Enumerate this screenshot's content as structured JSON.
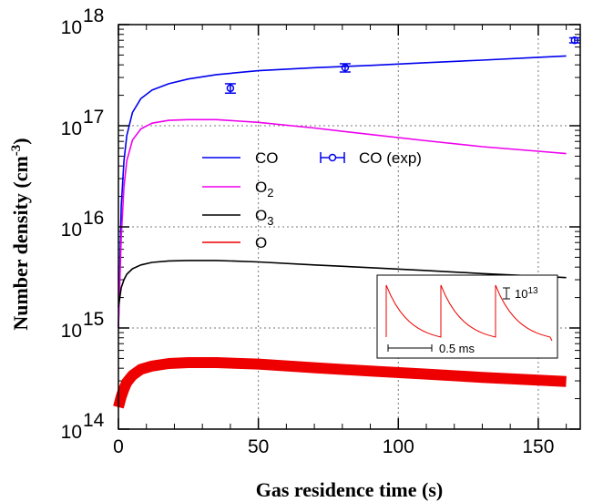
{
  "chart_data": {
    "type": "line",
    "xlabel": "Gas residence time (s)",
    "ylabel_text": "Number density (cm",
    "ylabel_sup": "-3",
    "ylabel_close": ")",
    "xlim": [
      0,
      165
    ],
    "ylim": [
      100000000000000.0,
      1e+18
    ],
    "yscale": "log",
    "grid": true,
    "x_ticks": [
      "0",
      "50",
      "100",
      "150"
    ],
    "y_ticks": [
      {
        "base": "10",
        "exp": "14"
      },
      {
        "base": "10",
        "exp": "15"
      },
      {
        "base": "10",
        "exp": "16"
      },
      {
        "base": "10",
        "exp": "17"
      },
      {
        "base": "10",
        "exp": "18"
      }
    ],
    "series": [
      {
        "name": "CO",
        "color": "#0000ee",
        "x": [
          0,
          1,
          2,
          3,
          5,
          8,
          12,
          18,
          25,
          35,
          50,
          70,
          90,
          110,
          130,
          150,
          160
        ],
        "y": [
          1000000000000000.0,
          1.6e+16,
          4.5e+16,
          8e+16,
          1.35e+17,
          1.85e+17,
          2.25e+17,
          2.6e+17,
          2.9e+17,
          3.2e+17,
          3.5e+17,
          3.75e+17,
          3.95e+17,
          4.2e+17,
          4.45e+17,
          4.75e+17,
          4.9e+17
        ]
      },
      {
        "name": "O2",
        "label_base": "O",
        "label_sub": "2",
        "color": "#ee00ee",
        "x": [
          0,
          1,
          2,
          3,
          5,
          8,
          12,
          18,
          25,
          35,
          50,
          70,
          90,
          110,
          130,
          150,
          160
        ],
        "y": [
          1000000000000000.0,
          8000000000000000.0,
          2.5e+16,
          4.5e+16,
          7.2e+16,
          9.3e+16,
          1.06e+17,
          1.13e+17,
          1.15e+17,
          1.15e+17,
          1.08e+17,
          9.5e+16,
          8.2e+16,
          7.1e+16,
          6.2e+16,
          5.6e+16,
          5.3e+16
        ]
      },
      {
        "name": "O3",
        "label_base": "O",
        "label_sub": "3",
        "color": "#000000",
        "x": [
          0,
          1,
          2,
          3,
          5,
          8,
          12,
          18,
          25,
          35,
          50,
          70,
          90,
          110,
          130,
          150,
          160
        ],
        "y": [
          1600000000000000.0,
          2500000000000000.0,
          3000000000000000.0,
          3400000000000000.0,
          3850000000000000.0,
          4200000000000000.0,
          4450000000000000.0,
          4600000000000000.0,
          4650000000000000.0,
          4650000000000000.0,
          4500000000000000.0,
          4200000000000000.0,
          3950000000000000.0,
          3700000000000000.0,
          3450000000000000.0,
          3250000000000000.0,
          3150000000000000.0
        ]
      },
      {
        "name": "O",
        "color": "#ee0000",
        "thick": true,
        "x": [
          0,
          1,
          2,
          3,
          5,
          8,
          12,
          18,
          25,
          35,
          50,
          70,
          90,
          110,
          130,
          150,
          160
        ],
        "y": [
          165000000000000.0,
          210000000000000.0,
          250000000000000.0,
          290000000000000.0,
          340000000000000.0,
          390000000000000.0,
          420000000000000.0,
          445000000000000.0,
          455000000000000.0,
          455000000000000.0,
          440000000000000.0,
          405000000000000.0,
          375000000000000.0,
          350000000000000.0,
          325000000000000.0,
          305000000000000.0,
          295000000000000.0
        ]
      }
    ],
    "experimental": {
      "name": "CO (exp)",
      "color": "#0000ee",
      "points": [
        {
          "x": 40,
          "y": 2.35e+17,
          "yerr_low": 2.1e+17,
          "yerr_high": 2.6e+17
        },
        {
          "x": 81,
          "y": 3.75e+17,
          "yerr_low": 3.4e+17,
          "yerr_high": 4.1e+17
        },
        {
          "x": 163,
          "y": 7e+17,
          "yerr_low": 6.6e+17,
          "yerr_high": 7.4e+17
        }
      ]
    },
    "legend_position": "middle-left",
    "inset": {
      "description_scale_bar": "10",
      "scale_exp": "13",
      "time_label": "0.5 ms"
    }
  }
}
